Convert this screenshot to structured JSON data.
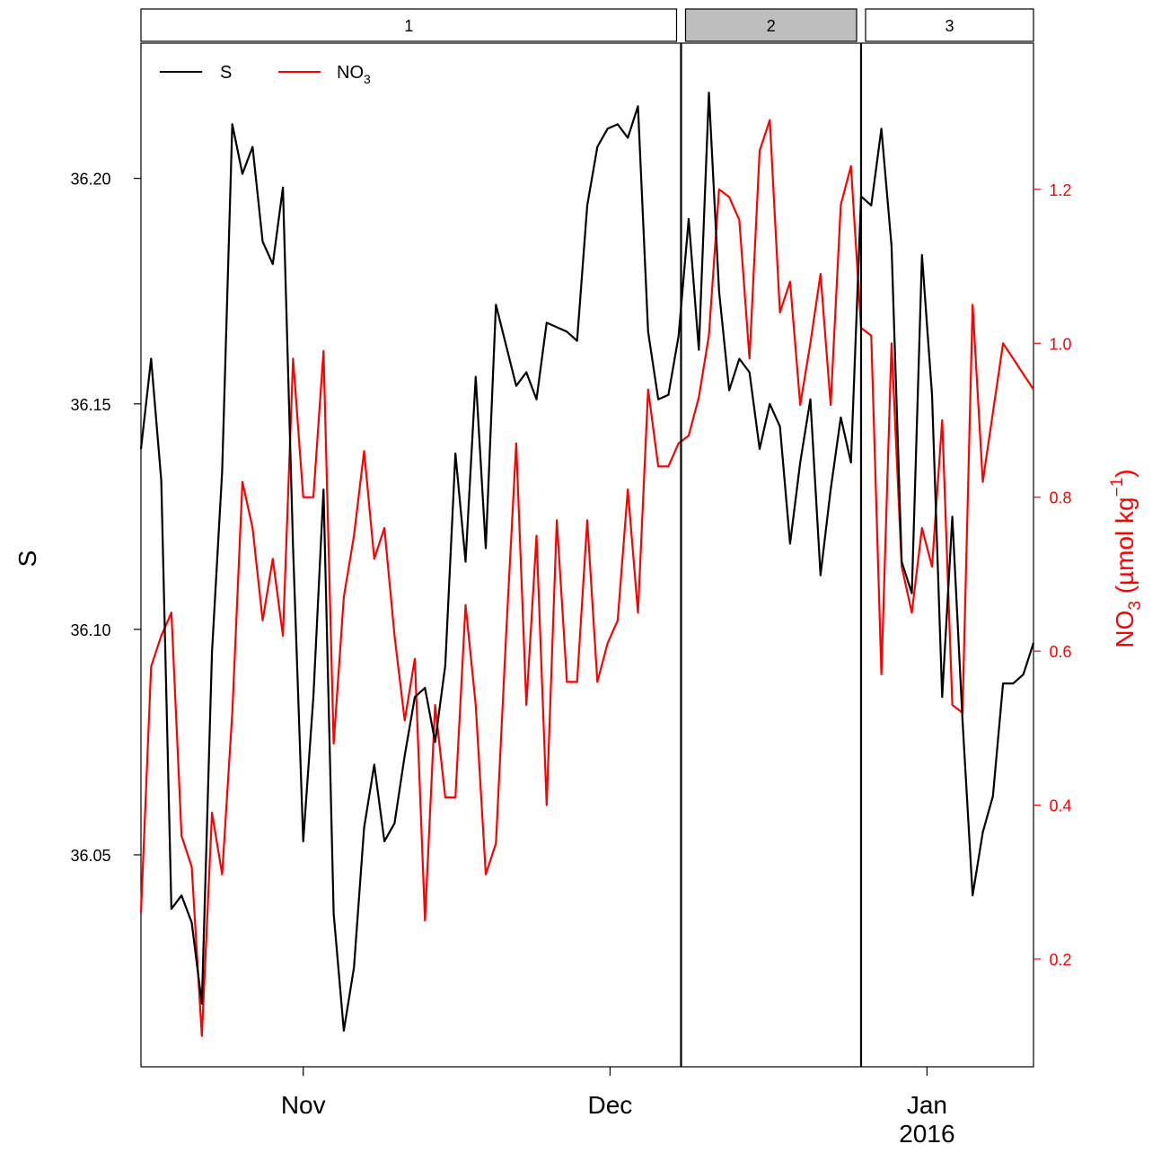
{
  "chart_data": {
    "type": "line",
    "colors": {
      "S": "#000000",
      "NO3": "#ff0000",
      "strip_active": "#bebebe",
      "strip_inactive": "#ffffff"
    },
    "strips": [
      {
        "label": "1",
        "active": false,
        "start_day": 0,
        "end_day": 106.5
      },
      {
        "label": "2",
        "active": true,
        "start_day": 106.5,
        "end_day": 142
      },
      {
        "label": "3",
        "active": false,
        "start_day": 142,
        "end_day": 176
      }
    ],
    "x_axis": {
      "xlim_days": [
        0,
        176
      ],
      "ticks": [
        {
          "day": 32,
          "label": "Nov",
          "sublabel": ""
        },
        {
          "day": 92.5,
          "label": "Dec",
          "sublabel": ""
        },
        {
          "day": 155,
          "label": "Jan",
          "sublabel": "2016"
        }
      ]
    },
    "left_axis": {
      "ylabel": "S",
      "ylim": [
        36.003,
        36.23
      ],
      "ticks": [
        36.05,
        36.1,
        36.15,
        36.2
      ],
      "tick_labels": [
        "36.05",
        "36.10",
        "36.15",
        "36.20"
      ]
    },
    "right_axis": {
      "ylabel_main": "NO",
      "ylabel_sub": "3",
      "ylabel_rest": " (µmol kg",
      "ylabel_sup": "−1",
      "ylabel_end": ")",
      "ylim": [
        0.06,
        1.39
      ],
      "ticks": [
        0.2,
        0.4,
        0.6,
        0.8,
        1.0,
        1.2
      ],
      "tick_labels": [
        "0.2",
        "0.4",
        "0.6",
        "0.8",
        "1.0",
        "1.2"
      ]
    },
    "legend": {
      "position": "top-left",
      "entries": [
        {
          "key": "S",
          "text": "S",
          "sub": ""
        },
        {
          "key": "NO3",
          "text": "NO",
          "sub": "3"
        }
      ]
    },
    "series": [
      {
        "name": "S",
        "axis": "left",
        "x": [
          0,
          2,
          4,
          6,
          8,
          10,
          12,
          14,
          16,
          18,
          20,
          22,
          24,
          26,
          28,
          30,
          32,
          34,
          36,
          38,
          40,
          42,
          44,
          46,
          48,
          50,
          52,
          54,
          56,
          58,
          60,
          62,
          64,
          66,
          68,
          70,
          72,
          74,
          76,
          78,
          80,
          82,
          84,
          86,
          88,
          90,
          92,
          94,
          96,
          98,
          100,
          102,
          104,
          106,
          108,
          110,
          112,
          114,
          116,
          118,
          120,
          122,
          124,
          126,
          128,
          130,
          132,
          134,
          136,
          138,
          140,
          142,
          144,
          146,
          148,
          150,
          152,
          154,
          156,
          158,
          160,
          162,
          164,
          166,
          168,
          170,
          172,
          174,
          176
        ],
        "y": [
          36.14,
          36.16,
          36.133,
          36.038,
          36.041,
          36.035,
          36.017,
          36.095,
          36.135,
          36.212,
          36.201,
          36.207,
          36.186,
          36.181,
          36.198,
          36.118,
          36.053,
          36.085,
          36.131,
          36.037,
          36.011,
          36.025,
          36.056,
          36.07,
          36.053,
          36.057,
          36.072,
          36.085,
          36.087,
          36.075,
          36.092,
          36.139,
          36.115,
          36.156,
          36.118,
          36.172,
          36.163,
          36.154,
          36.157,
          36.151,
          36.168,
          36.167,
          36.166,
          36.164,
          36.194,
          36.207,
          36.211,
          36.212,
          36.209,
          36.216,
          36.166,
          36.151,
          36.152,
          36.165,
          36.191,
          36.162,
          36.219,
          36.175,
          36.153,
          36.16,
          36.157,
          36.14,
          36.15,
          36.145,
          36.119,
          36.137,
          36.151,
          36.112,
          36.131,
          36.147,
          36.137,
          36.196,
          36.194,
          36.211,
          36.185,
          36.115,
          36.108,
          36.183,
          36.152,
          36.085,
          36.125,
          36.08,
          36.041,
          36.055,
          36.063,
          36.088,
          36.088,
          36.09,
          36.097
        ]
      },
      {
        "name": "NO3",
        "axis": "right",
        "x": [
          0,
          2,
          4,
          6,
          8,
          10,
          12,
          14,
          16,
          18,
          20,
          22,
          24,
          26,
          28,
          30,
          32,
          34,
          36,
          38,
          40,
          42,
          44,
          46,
          48,
          50,
          52,
          54,
          56,
          58,
          60,
          62,
          64,
          66,
          68,
          70,
          72,
          74,
          76,
          78,
          80,
          82,
          84,
          86,
          88,
          90,
          92,
          94,
          96,
          98,
          100,
          102,
          104,
          106,
          108,
          110,
          112,
          114,
          116,
          118,
          120,
          122,
          124,
          126,
          128,
          130,
          132,
          134,
          136,
          138,
          140,
          142,
          144,
          146,
          148,
          150,
          152,
          154,
          156,
          158,
          160,
          162,
          164,
          166,
          168,
          170,
          172,
          174,
          176
        ],
        "y": [
          0.26,
          0.58,
          0.62,
          0.65,
          0.36,
          0.32,
          0.1,
          0.39,
          0.31,
          0.52,
          0.82,
          0.76,
          0.64,
          0.72,
          0.62,
          0.98,
          0.8,
          0.8,
          0.99,
          0.48,
          0.67,
          0.75,
          0.86,
          0.72,
          0.76,
          0.62,
          0.51,
          0.59,
          0.25,
          0.53,
          0.41,
          0.41,
          0.66,
          0.53,
          0.31,
          0.35,
          0.62,
          0.87,
          0.53,
          0.75,
          0.4,
          0.77,
          0.56,
          0.56,
          0.77,
          0.56,
          0.61,
          0.64,
          0.81,
          0.65,
          0.94,
          0.84,
          0.84,
          0.87,
          0.88,
          0.93,
          1.01,
          1.2,
          1.19,
          1.16,
          0.98,
          1.25,
          1.29,
          1.04,
          1.08,
          0.92,
          1.0,
          1.09,
          0.92,
          1.18,
          1.23,
          1.02,
          1.01,
          0.57,
          1.0,
          0.71,
          0.65,
          0.76,
          0.71,
          0.9,
          0.53,
          0.52,
          1.05,
          0.82,
          0.91,
          1.0,
          0.98,
          0.96,
          0.94
        ]
      }
    ]
  }
}
